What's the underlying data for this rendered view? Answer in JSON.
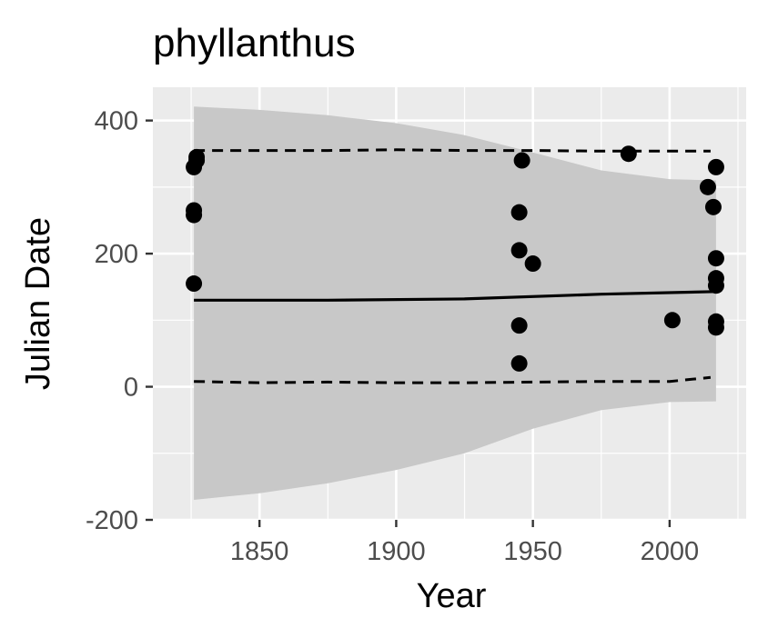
{
  "chart_data": {
    "type": "scatter",
    "title": "phyllanthus",
    "xlabel": "Year",
    "ylabel": "Julian Date",
    "xlim": [
      1811,
      2028
    ],
    "ylim": [
      -200,
      450
    ],
    "x_ticks": [
      1850,
      1900,
      1950,
      2000
    ],
    "x_tick_labels": [
      "1850",
      "1900",
      "1950",
      "2000"
    ],
    "y_ticks": [
      -200,
      0,
      200,
      400
    ],
    "y_tick_labels": [
      "-200",
      "0",
      "200",
      "400"
    ],
    "grid": true,
    "legend": "none",
    "colors": {
      "panel": "#ebebeb",
      "grid": "#ffffff",
      "ribbon": "#c8c8c8",
      "points": "#000000",
      "line": "#000000"
    },
    "points": {
      "x": [
        1826,
        1826,
        1826,
        1826,
        1827,
        1827,
        1945,
        1945,
        1945,
        1945,
        1946,
        1950,
        1985,
        2001,
        2014,
        2016,
        2017,
        2017,
        2017,
        2017,
        2017,
        2017
      ],
      "y": [
        330,
        265,
        258,
        155,
        345,
        340,
        262,
        205,
        92,
        35,
        340,
        185,
        350,
        100,
        300,
        270,
        330,
        193,
        163,
        152,
        98,
        89
      ]
    },
    "fit_line": {
      "x": [
        1826,
        1875,
        1925,
        1975,
        2017
      ],
      "y": [
        130,
        130,
        132,
        139,
        143
      ]
    },
    "ribbon": {
      "x": [
        1826,
        1850,
        1875,
        1900,
        1925,
        1950,
        1975,
        2000,
        2017
      ],
      "upper": [
        421,
        416,
        408,
        396,
        378,
        352,
        325,
        312,
        310
      ],
      "lower": [
        -170,
        -160,
        -145,
        -125,
        -100,
        -63,
        -35,
        -23,
        -22
      ]
    },
    "upper_bound": {
      "x": [
        1826,
        1850,
        1875,
        1900,
        1925,
        1950,
        1975,
        2000,
        2015
      ],
      "y": [
        355,
        355,
        355,
        356,
        355,
        355,
        354,
        354,
        354
      ]
    },
    "lower_bound": {
      "x": [
        1826,
        1850,
        1875,
        1900,
        1925,
        1950,
        1975,
        2000,
        2015
      ],
      "y": [
        8,
        6,
        7,
        6,
        6,
        7,
        8,
        8,
        14
      ]
    }
  }
}
